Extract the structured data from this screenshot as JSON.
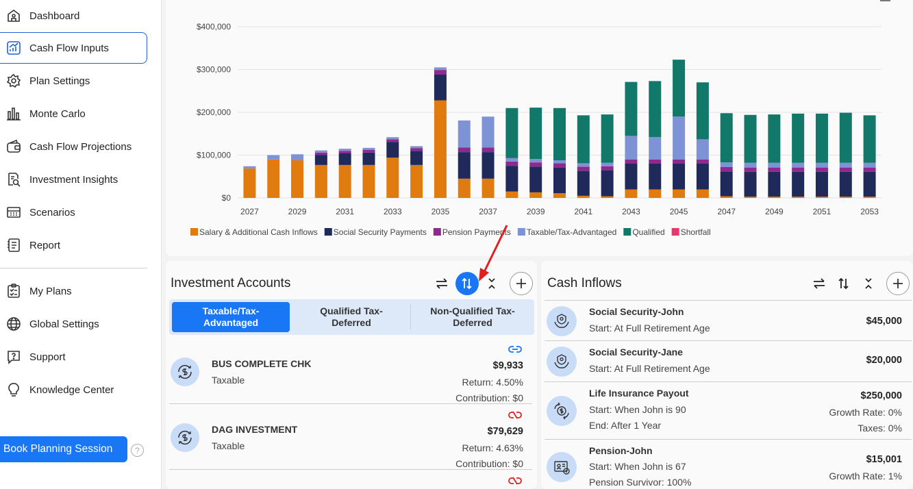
{
  "sidebar": {
    "items": [
      {
        "label": "Dashboard",
        "icon": "dashboard-icon"
      },
      {
        "label": "Cash Flow Inputs",
        "icon": "chart-up-icon",
        "active": true
      },
      {
        "label": "Plan Settings",
        "icon": "gear-icon"
      },
      {
        "label": "Monte Carlo",
        "icon": "bar-chart-icon"
      },
      {
        "label": "Cash Flow Projections",
        "icon": "wallet-icon"
      },
      {
        "label": "Investment Insights",
        "icon": "magnifier-doc-icon"
      },
      {
        "label": "Scenarios",
        "icon": "calculator-icon"
      },
      {
        "label": "Report",
        "icon": "report-icon"
      }
    ],
    "secondary": [
      {
        "label": "My Plans",
        "icon": "clipboard-icon"
      },
      {
        "label": "Global Settings",
        "icon": "globe-icon"
      },
      {
        "label": "Support",
        "icon": "chat-question-icon"
      },
      {
        "label": "Knowledge Center",
        "icon": "lightbulb-icon"
      }
    ],
    "book_label": "Book Planning Session",
    "help_label": "?"
  },
  "chart_data": {
    "type": "bar",
    "stacked": true,
    "categories": [
      "2027",
      "2028",
      "2029",
      "2030",
      "2031",
      "2032",
      "2033",
      "2034",
      "2035",
      "2036",
      "2037",
      "2038",
      "2039",
      "2040",
      "2041",
      "2042",
      "2043",
      "2044",
      "2045",
      "2046",
      "2047",
      "2048",
      "2049",
      "2050",
      "2051",
      "2052",
      "2053"
    ],
    "x_tick_labels": [
      "2027",
      "2029",
      "2031",
      "2033",
      "2035",
      "2037",
      "2039",
      "2041",
      "2043",
      "2045",
      "2047",
      "2049",
      "2051",
      "2053"
    ],
    "y_tick_labels": [
      "$0",
      "$100,000",
      "$200,000",
      "$300,000",
      "$400,000"
    ],
    "ylim": [
      0,
      400000
    ],
    "grid": true,
    "legend_position": "bottom-left",
    "series": [
      {
        "name": "Salary & Additional Cash Inflows",
        "color": "#e07b0f",
        "values": [
          69000,
          90000,
          88000,
          77000,
          77000,
          77000,
          94000,
          77000,
          228000,
          45000,
          45000,
          15000,
          13000,
          11000,
          5000,
          4000,
          20000,
          20000,
          20000,
          20000,
          4000,
          3000,
          3000,
          3000,
          3000,
          3000,
          3000
        ]
      },
      {
        "name": "Social Security Payments",
        "color": "#1f2a5a",
        "values": [
          0,
          0,
          0,
          23000,
          27000,
          29000,
          37000,
          33000,
          60000,
          62000,
          62000,
          60000,
          60000,
          60000,
          58000,
          60000,
          60000,
          60000,
          60000,
          60000,
          58000,
          58000,
          58000,
          58000,
          58000,
          58000,
          58000
        ]
      },
      {
        "name": "Pension Payments",
        "color": "#8e2a8e",
        "values": [
          0,
          0,
          0,
          6000,
          6000,
          6000,
          6000,
          6000,
          11000,
          11000,
          11000,
          10000,
          10000,
          10000,
          10000,
          10000,
          10000,
          10000,
          10000,
          10000,
          10000,
          10000,
          10000,
          10000,
          10000,
          10000,
          10000
        ]
      },
      {
        "name": "Taxable/Tax-Advantaged",
        "color": "#7e93d6",
        "values": [
          5000,
          10000,
          14000,
          5000,
          5000,
          5000,
          5000,
          5000,
          6000,
          63000,
          72000,
          8000,
          8000,
          7000,
          8000,
          8000,
          55000,
          52000,
          100000,
          47000,
          11000,
          11000,
          11000,
          11000,
          11000,
          11000,
          11000
        ]
      },
      {
        "name": "Qualified",
        "color": "#11786a",
        "values": [
          0,
          0,
          0,
          0,
          0,
          0,
          0,
          0,
          0,
          0,
          0,
          117000,
          120000,
          122000,
          112000,
          113000,
          126000,
          131000,
          133000,
          133000,
          115000,
          112000,
          113000,
          115000,
          115000,
          117000,
          111000
        ]
      },
      {
        "name": "Shortfall",
        "color": "#e8386f",
        "values": [
          0,
          0,
          0,
          0,
          0,
          0,
          0,
          0,
          0,
          0,
          0,
          0,
          0,
          0,
          0,
          0,
          0,
          0,
          0,
          0,
          0,
          0,
          0,
          0,
          0,
          0,
          0
        ]
      }
    ]
  },
  "investment": {
    "title": "Investment Accounts",
    "tabs": [
      "Taxable/Tax-\nAdvantaged",
      "Qualified Tax-\nDeferred",
      "Non-Qualified Tax-\nDeferred"
    ],
    "accounts": [
      {
        "name": "BUS COMPLETE CHK",
        "type": "Taxable",
        "value": "$9,933",
        "return": "Return: 4.50%",
        "contribution": "Contribution: $0",
        "link": "linked-icon"
      },
      {
        "name": "DAG INVESTMENT",
        "type": "Taxable",
        "value": "$79,629",
        "return": "Return: 4.63%",
        "contribution": "Contribution: $0",
        "link": "unlinked-icon"
      },
      {
        "link": "unlinked-icon"
      }
    ]
  },
  "cash_inflows": {
    "title": "Cash Inflows",
    "items": [
      {
        "name": "Social Security-John",
        "line1": "Start: At Full Retirement Age",
        "amount": "$45,000"
      },
      {
        "name": "Social Security-Jane",
        "line1": "Start: At Full Retirement Age",
        "amount": "$20,000"
      },
      {
        "name": "Life Insurance Payout",
        "line1": "Start: When John is 90",
        "line2": "End: After 1 Year",
        "amount": "$250,000",
        "r1": "Growth Rate: 0%",
        "r2": "Taxes: 0%"
      },
      {
        "name": "Pension-John",
        "line1": "Start: When John is 67",
        "line2": "Pension Survivor: 100%",
        "amount": "$15,001",
        "r1": "Growth Rate: 1%"
      }
    ]
  },
  "colors": {
    "accent": "#1976f5",
    "annotation": "#e02020"
  }
}
